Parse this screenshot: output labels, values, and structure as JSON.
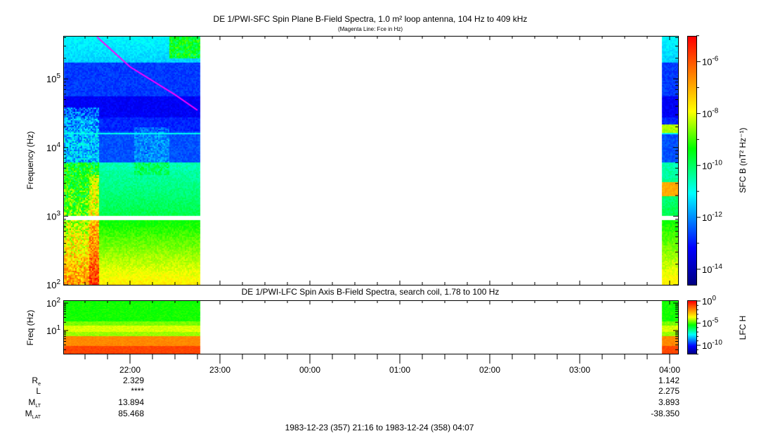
{
  "chart_data": {
    "type": "heatmap",
    "title": "DE 1/PWI-SFC  Spin Plane B-Field Spectra, 1.0 m² loop antenna, 104 Hz to 409 kHz",
    "subtitle": "(Magenta Line: Fce in Hz)",
    "ylabel": "Frequency (Hz)",
    "y_scale": "log",
    "ylim": [
      104,
      409000
    ],
    "y_ticks": [
      {
        "base": "10",
        "exp": "2"
      },
      {
        "base": "10",
        "exp": "3"
      },
      {
        "base": "10",
        "exp": "4"
      },
      {
        "base": "10",
        "exp": "5"
      }
    ],
    "colorbar": {
      "label": "SFC B (nT² Hz⁻¹)",
      "scale": "log",
      "ticks": [
        {
          "base": "10",
          "exp": "-6"
        },
        {
          "base": "10",
          "exp": "-8"
        },
        {
          "base": "10",
          "exp": "-10"
        },
        {
          "base": "10",
          "exp": "-12"
        },
        {
          "base": "10",
          "exp": "-14"
        }
      ],
      "colormap": [
        "#000080",
        "#0000ff",
        "#00ffff",
        "#00ff00",
        "#ffff00",
        "#ff8000",
        "#ff0000"
      ]
    },
    "data_coverage": [
      [
        "21:16",
        "22:47"
      ],
      [
        "03:55",
        "04:07"
      ]
    ],
    "data_gap_hz": [
      900,
      1050
    ],
    "fce_line": {
      "color": "#ff00ff",
      "points": [
        [
          "21:38",
          409000
        ],
        [
          "22:00",
          150000
        ],
        [
          "22:30",
          59000
        ],
        [
          "22:45",
          35000
        ]
      ]
    },
    "lower_panel": {
      "title": "DE 1/PWI-LFC  Spin Axis B-Field Spectra, search coil, 1.78 to 100 Hz",
      "ylabel": "Freq (Hz)",
      "y_scale": "log",
      "y_ticks": [
        {
          "base": "10",
          "exp": "2"
        },
        {
          "base": "10",
          "exp": "1"
        }
      ],
      "colorbar": {
        "label": "LFC H",
        "scale": "log",
        "ticks": [
          {
            "base": "10",
            "exp": "0"
          },
          {
            "base": "10",
            "exp": "-5"
          },
          {
            "base": "10",
            "exp": "-10"
          }
        ]
      }
    },
    "x_ticks": [
      "22:00",
      "23:00",
      "00:00",
      "01:00",
      "02:00",
      "03:00",
      "04:00"
    ],
    "x_range": [
      "1983-12-23 21:16",
      "1983-12-24 04:07"
    ],
    "time_range_label": "1983-12-23 (357) 21:16 to 1983-12-24 (358) 04:07"
  },
  "ephemeris": [
    {
      "label": "R",
      "sub": "e",
      "values": [
        "2.329",
        "1.142"
      ]
    },
    {
      "label": "L",
      "sub": "",
      "values": [
        "****",
        "2.275"
      ]
    },
    {
      "label": "M",
      "sub": "LT",
      "values": [
        "13.894",
        "3.893"
      ]
    },
    {
      "label": "M",
      "sub": "LAT",
      "values": [
        "85.468",
        "-38.350"
      ]
    }
  ]
}
